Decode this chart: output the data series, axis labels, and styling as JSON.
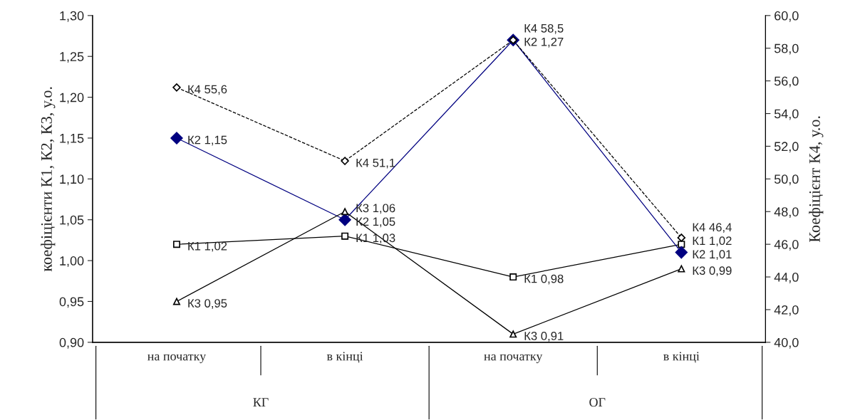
{
  "chart_data": {
    "type": "line",
    "categories": [
      "на початку",
      "в кінці",
      "на початку",
      "в кінці"
    ],
    "annotations": [
      "КГ",
      "ОГ"
    ],
    "ylabel": "коефіцієнти К1, К2, К3, у.о.",
    "y2label": "Коефіцієнт К4, у.о.",
    "series": [
      {
        "name": "К1",
        "color": "#000000",
        "marker": "square",
        "line_style": "solid",
        "values": [
          1.02,
          1.03,
          0.98,
          1.02
        ],
        "value_labels": [
          "1,02",
          "1,03",
          "0,98",
          "1,02"
        ]
      },
      {
        "name": "К2",
        "color": "#000080",
        "marker": "diamond",
        "line_style": "solid",
        "values": [
          1.15,
          1.05,
          1.27,
          1.01
        ],
        "value_labels": [
          "1,15",
          "1,05",
          "1,27",
          "1,01"
        ]
      },
      {
        "name": "К3",
        "color": "#000000",
        "marker": "triangle",
        "line_style": "solid",
        "values": [
          0.95,
          1.06,
          0.91,
          0.99
        ],
        "value_labels": [
          "0,95",
          "1,06",
          "0,91",
          "0,99"
        ]
      },
      {
        "name": "К4",
        "color": "#000000",
        "marker": "diamond",
        "line_style": "dashed",
        "axis": "y2",
        "values": [
          55.6,
          51.1,
          58.5,
          46.4
        ],
        "value_labels": [
          "55,6",
          "51,1",
          "58,5",
          "46,4"
        ]
      }
    ],
    "ylim": [
      0.9,
      1.3
    ],
    "yticks": [
      {
        "value": 0.9,
        "label": "0,90"
      },
      {
        "value": 0.95,
        "label": "0,95"
      },
      {
        "value": 1.0,
        "label": "1,00"
      },
      {
        "value": 1.05,
        "label": "1,05"
      },
      {
        "value": 1.1,
        "label": "1,10"
      },
      {
        "value": 1.15,
        "label": "1,15"
      },
      {
        "value": 1.2,
        "label": "1,20"
      },
      {
        "value": 1.25,
        "label": "1,25"
      },
      {
        "value": 1.3,
        "label": "1,30"
      }
    ],
    "y2lim": [
      40,
      60
    ],
    "y2ticks": [
      {
        "value": 40,
        "label": "40,0"
      },
      {
        "value": 42,
        "label": "42,0"
      },
      {
        "value": 44,
        "label": "44,0"
      },
      {
        "value": 46,
        "label": "46,0"
      },
      {
        "value": 48,
        "label": "48,0"
      },
      {
        "value": 50,
        "label": "50,0"
      },
      {
        "value": 52,
        "label": "52,0"
      },
      {
        "value": 54,
        "label": "54,0"
      },
      {
        "value": 56,
        "label": "56,0"
      },
      {
        "value": 58,
        "label": "58,0"
      },
      {
        "value": 60,
        "label": "60,0"
      }
    ],
    "grid": false,
    "legend": false
  }
}
